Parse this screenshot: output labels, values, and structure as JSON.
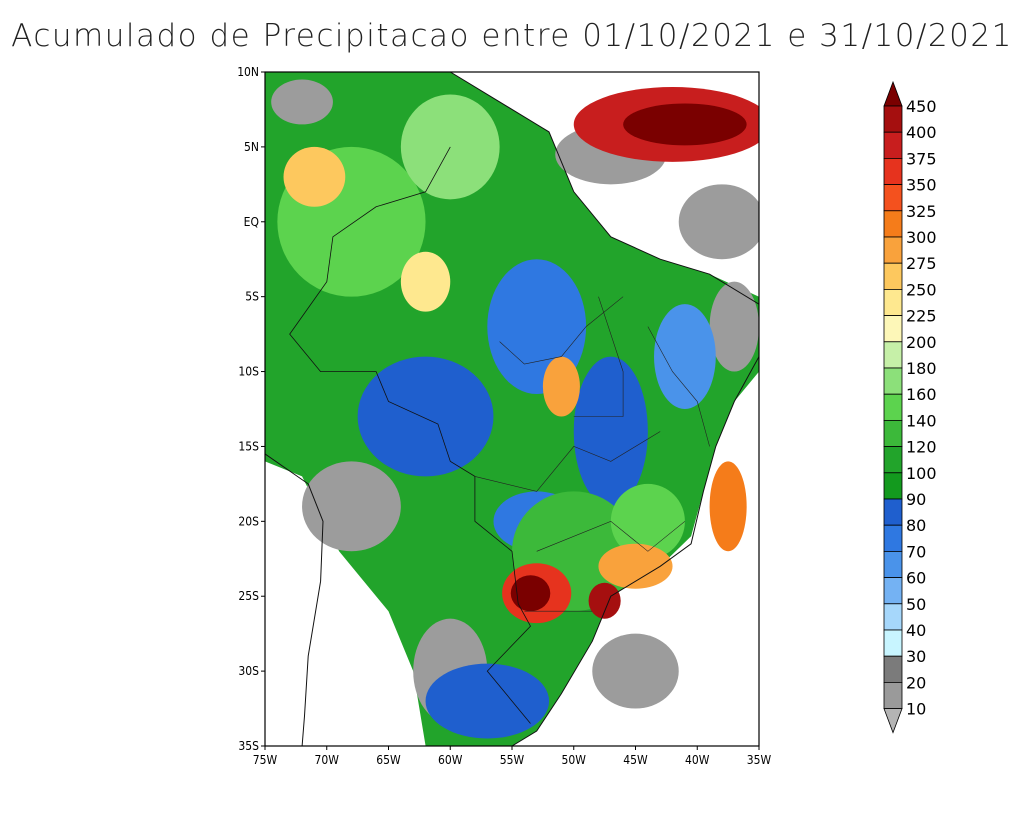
{
  "title": "Acumulado de Precipitacao entre 01/10/2021 e 31/10/2021",
  "map": {
    "lon_range": [
      -75,
      -35
    ],
    "lat_range": [
      -35,
      10
    ],
    "lat_ticks": [
      {
        "value": 10,
        "label": "10N"
      },
      {
        "value": 5,
        "label": "5N"
      },
      {
        "value": 0,
        "label": "EQ"
      },
      {
        "value": -5,
        "label": "5S"
      },
      {
        "value": -10,
        "label": "10S"
      },
      {
        "value": -15,
        "label": "15S"
      },
      {
        "value": -20,
        "label": "20S"
      },
      {
        "value": -25,
        "label": "25S"
      },
      {
        "value": -30,
        "label": "30S"
      },
      {
        "value": -35,
        "label": "35S"
      }
    ],
    "lon_ticks": [
      {
        "value": -75,
        "label": "75W"
      },
      {
        "value": -70,
        "label": "70W"
      },
      {
        "value": -65,
        "label": "65W"
      },
      {
        "value": -60,
        "label": "60W"
      },
      {
        "value": -55,
        "label": "55W"
      },
      {
        "value": -50,
        "label": "50W"
      },
      {
        "value": -45,
        "label": "45W"
      },
      {
        "value": -40,
        "label": "40W"
      },
      {
        "value": -35,
        "label": "35W"
      }
    ],
    "colorbar": [
      {
        "label": "450",
        "color": "#7a0000"
      },
      {
        "label": "400",
        "color": "#a50f0f"
      },
      {
        "label": "375",
        "color": "#c81e1e"
      },
      {
        "label": "350",
        "color": "#e6331e"
      },
      {
        "label": "325",
        "color": "#f4511e"
      },
      {
        "label": "300",
        "color": "#f57c1a"
      },
      {
        "label": "275",
        "color": "#f9a23c"
      },
      {
        "label": "250",
        "color": "#fdc85e"
      },
      {
        "label": "225",
        "color": "#fee88f"
      },
      {
        "label": "200",
        "color": "#fdf7b8"
      },
      {
        "label": "180",
        "color": "#c6f0a8"
      },
      {
        "label": "160",
        "color": "#8ce07a"
      },
      {
        "label": "140",
        "color": "#5cd34e"
      },
      {
        "label": "120",
        "color": "#3cb93a"
      },
      {
        "label": "100",
        "color": "#22a42b"
      },
      {
        "label": "90",
        "color": "#139a1e"
      },
      {
        "label": "80",
        "color": "#1f5fce"
      },
      {
        "label": "70",
        "color": "#2f78e1"
      },
      {
        "label": "60",
        "color": "#4a93ea"
      },
      {
        "label": "50",
        "color": "#74b2f3"
      },
      {
        "label": "40",
        "color": "#a6d7fb"
      },
      {
        "label": "30",
        "color": "#c8f5ff"
      },
      {
        "label": "20",
        "color": "#7b7b7b"
      },
      {
        "label": "10",
        "color": "#9a9a9a"
      }
    ],
    "colorbar_bottom_color": "#b4b4b4",
    "ocean_color": "#ffffff",
    "grey_color": "#9c9c9c"
  }
}
